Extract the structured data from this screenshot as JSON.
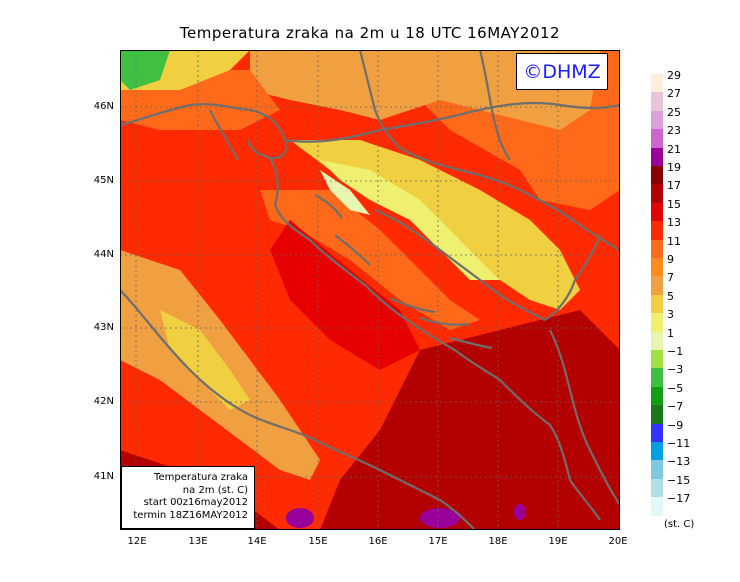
{
  "title": "Temperatura zraka na 2m u 18 UTC 16MAY2012",
  "watermark": "©DHMZ",
  "info": {
    "line1": "Temperatura zraka",
    "line2": "na 2m (st. C)",
    "line3": "start 00z16may2012",
    "line4": "termin 18Z16MAY2012"
  },
  "axes": {
    "lat_labels": [
      "46N",
      "45N",
      "44N",
      "43N",
      "42N",
      "41N"
    ],
    "lon_labels": [
      "12E",
      "13E",
      "14E",
      "15E",
      "16E",
      "17E",
      "18E",
      "19E",
      "20E"
    ]
  },
  "legend": {
    "unit": "(st. C)",
    "labels": [
      "29",
      "27",
      "25",
      "23",
      "21",
      "19",
      "17",
      "15",
      "13",
      "11",
      "9",
      "7",
      "5",
      "3",
      "1",
      "−1",
      "−3",
      "−5",
      "−7",
      "−9",
      "−11",
      "−13",
      "−15",
      "−17"
    ],
    "colors": [
      "#ffeedd",
      "#e8c4d8",
      "#dda0dd",
      "#cc66cc",
      "#990099",
      "#8b0000",
      "#b30000",
      "#e60000",
      "#ff2a00",
      "#ff6a1a",
      "#ff8c1a",
      "#f0a040",
      "#f0d040",
      "#f0f070",
      "#e8f5b0",
      "#a0e040",
      "#40c040",
      "#10a010",
      "#1a7a1a",
      "#3333ff",
      "#00a0e6",
      "#80c8e0",
      "#b0e0e6",
      "#e0f8f8"
    ]
  }
}
